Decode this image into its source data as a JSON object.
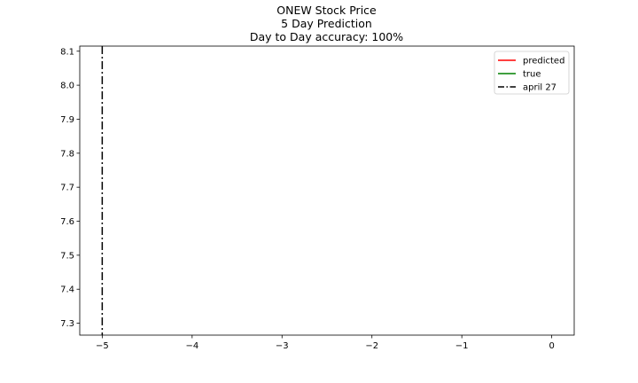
{
  "chart_data": {
    "type": "line",
    "title_lines": [
      "ONEW Stock Price",
      "5 Day Prediction",
      "Day to Day accuracy: 100%"
    ],
    "xlabel": "",
    "ylabel": "",
    "xlim": [
      -5.25,
      0.25
    ],
    "ylim": [
      7.265,
      8.115
    ],
    "x_ticks": [
      -5,
      -4,
      -3,
      -2,
      -1,
      0
    ],
    "x_tick_labels": [
      "−5",
      "−4",
      "−3",
      "−2",
      "−1",
      "0"
    ],
    "y_ticks": [
      7.3,
      7.4,
      7.5,
      7.6,
      7.7,
      7.8,
      7.9,
      8.0,
      8.1
    ],
    "y_tick_labels": [
      "7.3",
      "7.4",
      "7.5",
      "7.6",
      "7.7",
      "7.8",
      "7.9",
      "8.0",
      "8.1"
    ],
    "series": [
      {
        "name": "predicted",
        "color": "#ff0000",
        "style": "solid",
        "x": [],
        "y": []
      },
      {
        "name": "true",
        "color": "#008000",
        "style": "solid",
        "x": [],
        "y": []
      }
    ],
    "vlines": [
      {
        "name": "april 27",
        "x": -5,
        "color": "#000000",
        "style": "dashdot"
      }
    ],
    "legend_position": "top-right",
    "grid": false
  }
}
